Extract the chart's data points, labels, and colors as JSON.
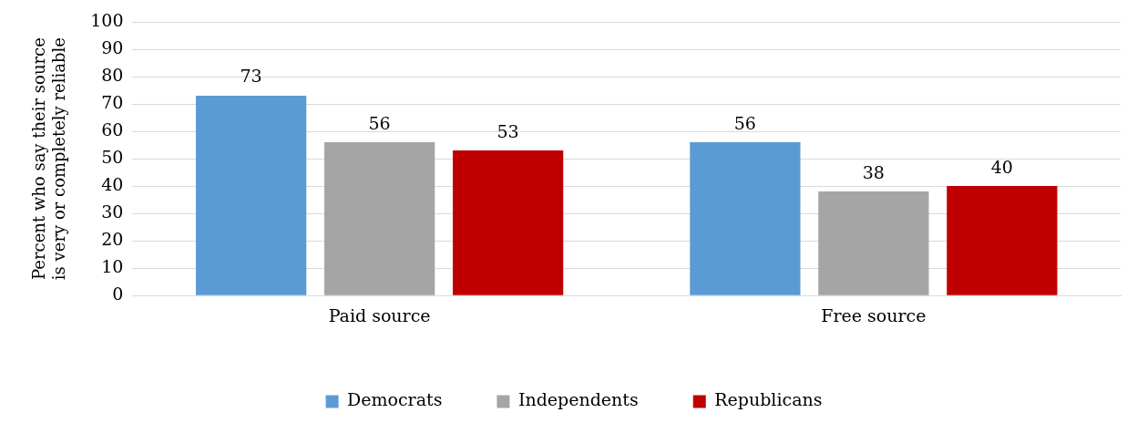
{
  "chart_data": {
    "type": "bar",
    "ylabel": "Percent who say their source is very or completely reliable",
    "categories": [
      "Paid source",
      "Free source"
    ],
    "series": [
      {
        "name": "Democrats",
        "color": "#5b9bd5",
        "values": [
          73,
          56
        ]
      },
      {
        "name": "Independents",
        "color": "#a5a5a5",
        "values": [
          56,
          38
        ]
      },
      {
        "name": "Republicans",
        "color": "#c00000",
        "values": [
          53,
          40
        ]
      }
    ],
    "ylim": [
      0,
      100
    ],
    "yticks": [
      0,
      10,
      20,
      30,
      40,
      50,
      60,
      70,
      80,
      90,
      100
    ],
    "grid": "y",
    "legend": "bottom",
    "data_labels": true
  }
}
